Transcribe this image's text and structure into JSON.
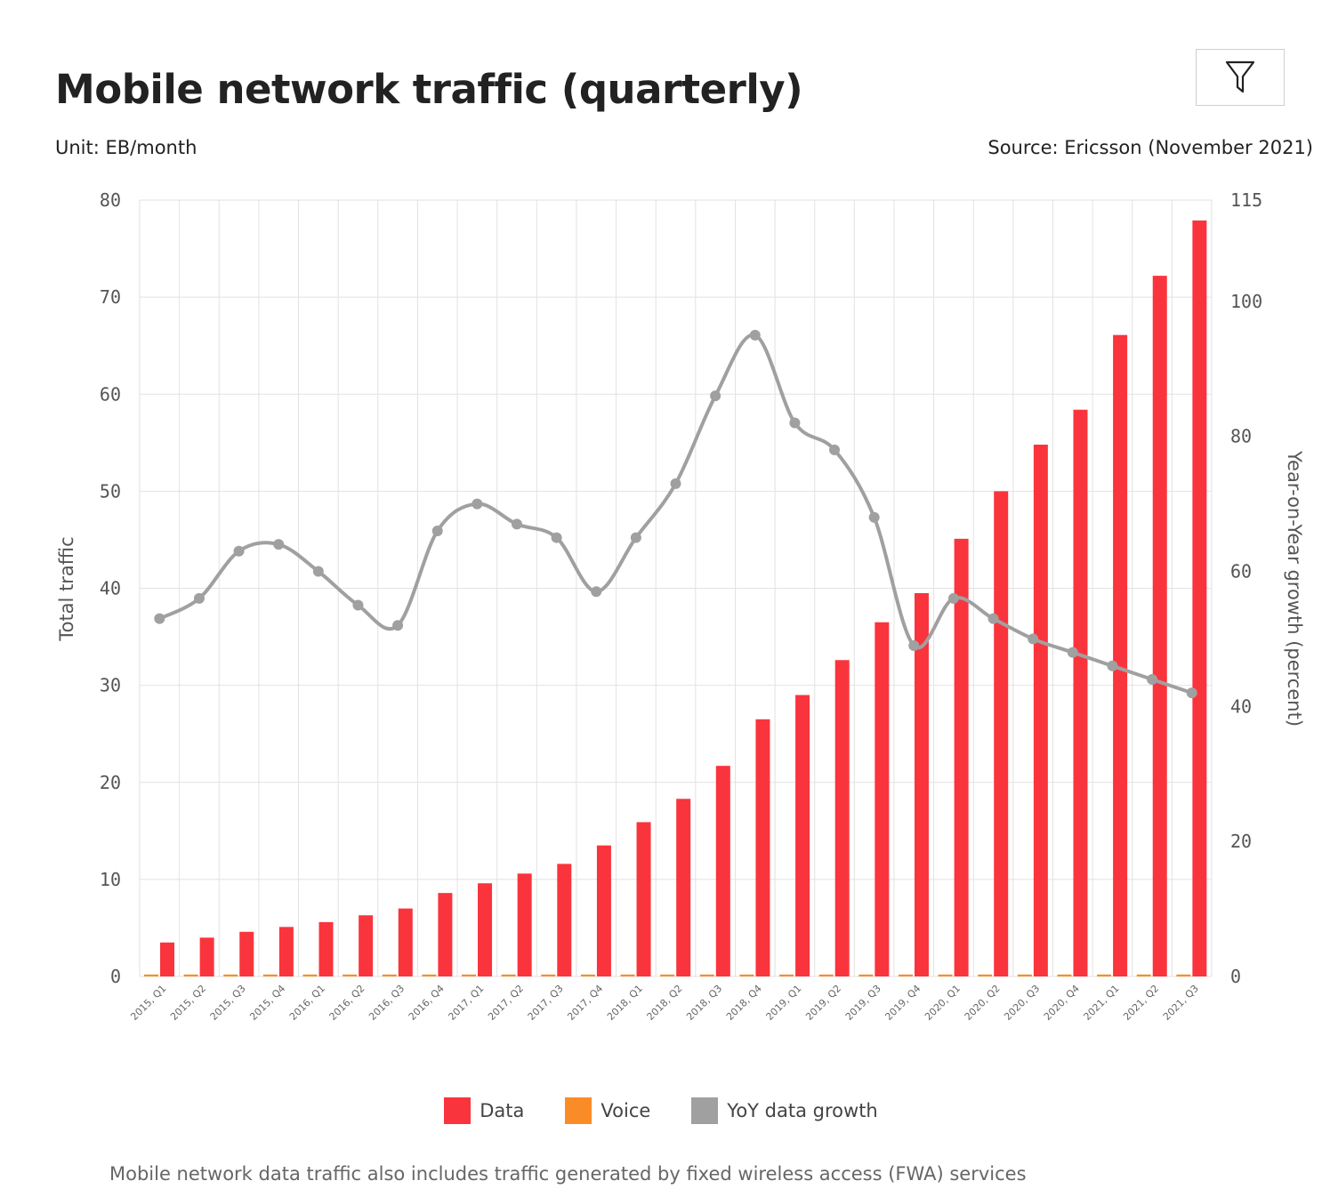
{
  "header": {
    "title": "Mobile network traffic (quarterly)",
    "unit": "Unit: EB/month",
    "source": "Source: Ericsson (November 2021)"
  },
  "toolbar": {
    "filter_icon": "filter-icon"
  },
  "footnote": "Mobile network data traffic also includes traffic generated by fixed wireless access (FWA) services",
  "colors": {
    "data": "#fa343c",
    "voice": "#fa8c28",
    "yoy": "#a0a0a0",
    "grid": "#e2e2e2"
  },
  "chart_data": {
    "type": "bar",
    "title": "Mobile network traffic (quarterly)",
    "xlabel": "",
    "ylabel": "Total traffic",
    "y2label": "Year-on-Year growth (percent)",
    "ylim": [
      0,
      80
    ],
    "y2lim": [
      0,
      115
    ],
    "yticks": [
      0,
      10,
      20,
      30,
      40,
      50,
      60,
      70,
      80
    ],
    "y2ticks": [
      0,
      20,
      40,
      60,
      80,
      100,
      115
    ],
    "grid": true,
    "legend_position": "bottom",
    "categories": [
      "2015, Q1",
      "2015, Q2",
      "2015, Q3",
      "2015, Q4",
      "2016, Q1",
      "2016, Q2",
      "2016, Q3",
      "2016, Q4",
      "2017, Q1",
      "2017, Q2",
      "2017, Q3",
      "2017, Q4",
      "2018, Q1",
      "2018, Q2",
      "2018, Q3",
      "2018, Q4",
      "2019, Q1",
      "2019, Q2",
      "2019, Q3",
      "2019, Q4",
      "2020, Q1",
      "2020, Q2",
      "2020, Q3",
      "2020, Q4",
      "2021, Q1",
      "2021, Q2",
      "2021, Q3"
    ],
    "series": [
      {
        "name": "Data",
        "type": "bar",
        "axis": "left",
        "values": [
          3.5,
          4.0,
          4.6,
          5.1,
          5.6,
          6.3,
          7.0,
          8.6,
          9.6,
          10.6,
          11.6,
          13.5,
          15.9,
          18.3,
          21.7,
          26.5,
          29.0,
          32.6,
          36.5,
          39.5,
          45.1,
          50.0,
          54.8,
          58.4,
          66.1,
          72.2,
          77.9
        ]
      },
      {
        "name": "Voice",
        "type": "bar",
        "axis": "left",
        "values": [
          0.2,
          0.2,
          0.2,
          0.2,
          0.2,
          0.2,
          0.2,
          0.2,
          0.2,
          0.2,
          0.2,
          0.2,
          0.2,
          0.2,
          0.2,
          0.2,
          0.2,
          0.2,
          0.2,
          0.2,
          0.2,
          0.2,
          0.2,
          0.2,
          0.2,
          0.2,
          0.2
        ]
      },
      {
        "name": "YoY data growth",
        "type": "line",
        "axis": "right",
        "values": [
          53,
          56,
          63,
          64,
          60,
          55,
          52,
          66,
          70,
          67,
          65,
          57,
          65,
          73,
          86,
          95,
          82,
          78,
          68,
          49,
          56,
          53,
          50,
          48,
          46,
          44,
          42
        ]
      }
    ]
  }
}
